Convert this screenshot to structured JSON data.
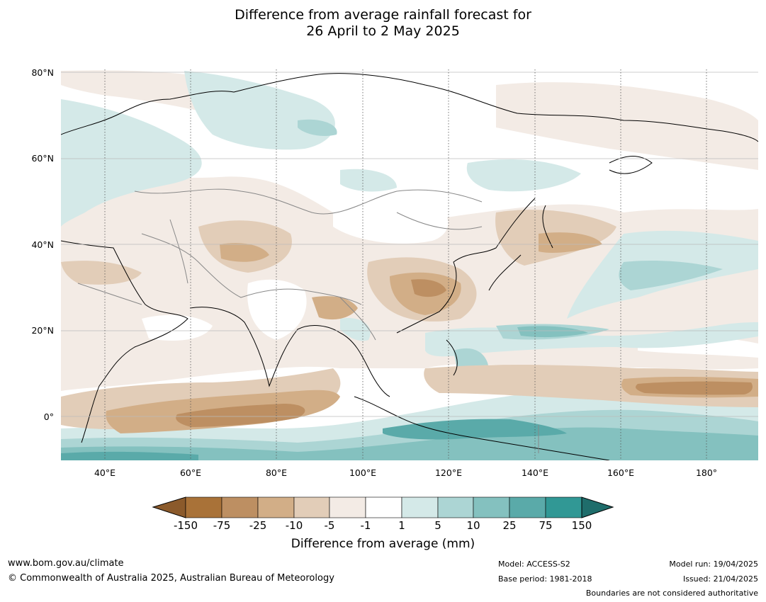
{
  "title": {
    "line1": "Difference from average rainfall forecast for",
    "line2": "26 April to 2 May 2025"
  },
  "map": {
    "lat_labels": [
      "80°N",
      "60°N",
      "40°N",
      "20°N",
      "0°"
    ],
    "lon_labels": [
      "40°E",
      "60°E",
      "80°E",
      "100°E",
      "120°E",
      "140°E",
      "160°E",
      "180°"
    ],
    "extent": {
      "lon_min": 30,
      "lon_max": 190,
      "lat_min": -10,
      "lat_max": 80
    }
  },
  "colorbar": {
    "title": "Difference from average (mm)",
    "ticks": [
      "-150",
      "-75",
      "-25",
      "-10",
      "-5",
      "-1",
      "1",
      "5",
      "10",
      "25",
      "75",
      "150"
    ],
    "colors": [
      "#8b5a2b",
      "#a97238",
      "#bd8f62",
      "#d2ae87",
      "#e2cdb8",
      "#f3ebe5",
      "#ffffff",
      "#d4e9e8",
      "#acd5d4",
      "#84c1bf",
      "#5aaaa9",
      "#319895",
      "#1f6d6b"
    ]
  },
  "footer": {
    "url": "www.bom.gov.au/climate",
    "copyright": "© Commonwealth of Australia 2025, Australian Bureau of Meteorology",
    "model": "Model: ACCESS-S2",
    "base_period": "Base period: 1981-2018",
    "model_run": "Model run: 19/04/2025",
    "issued": "Issued: 21/04/2025",
    "boundaries": "Boundaries are not considered authoritative"
  }
}
